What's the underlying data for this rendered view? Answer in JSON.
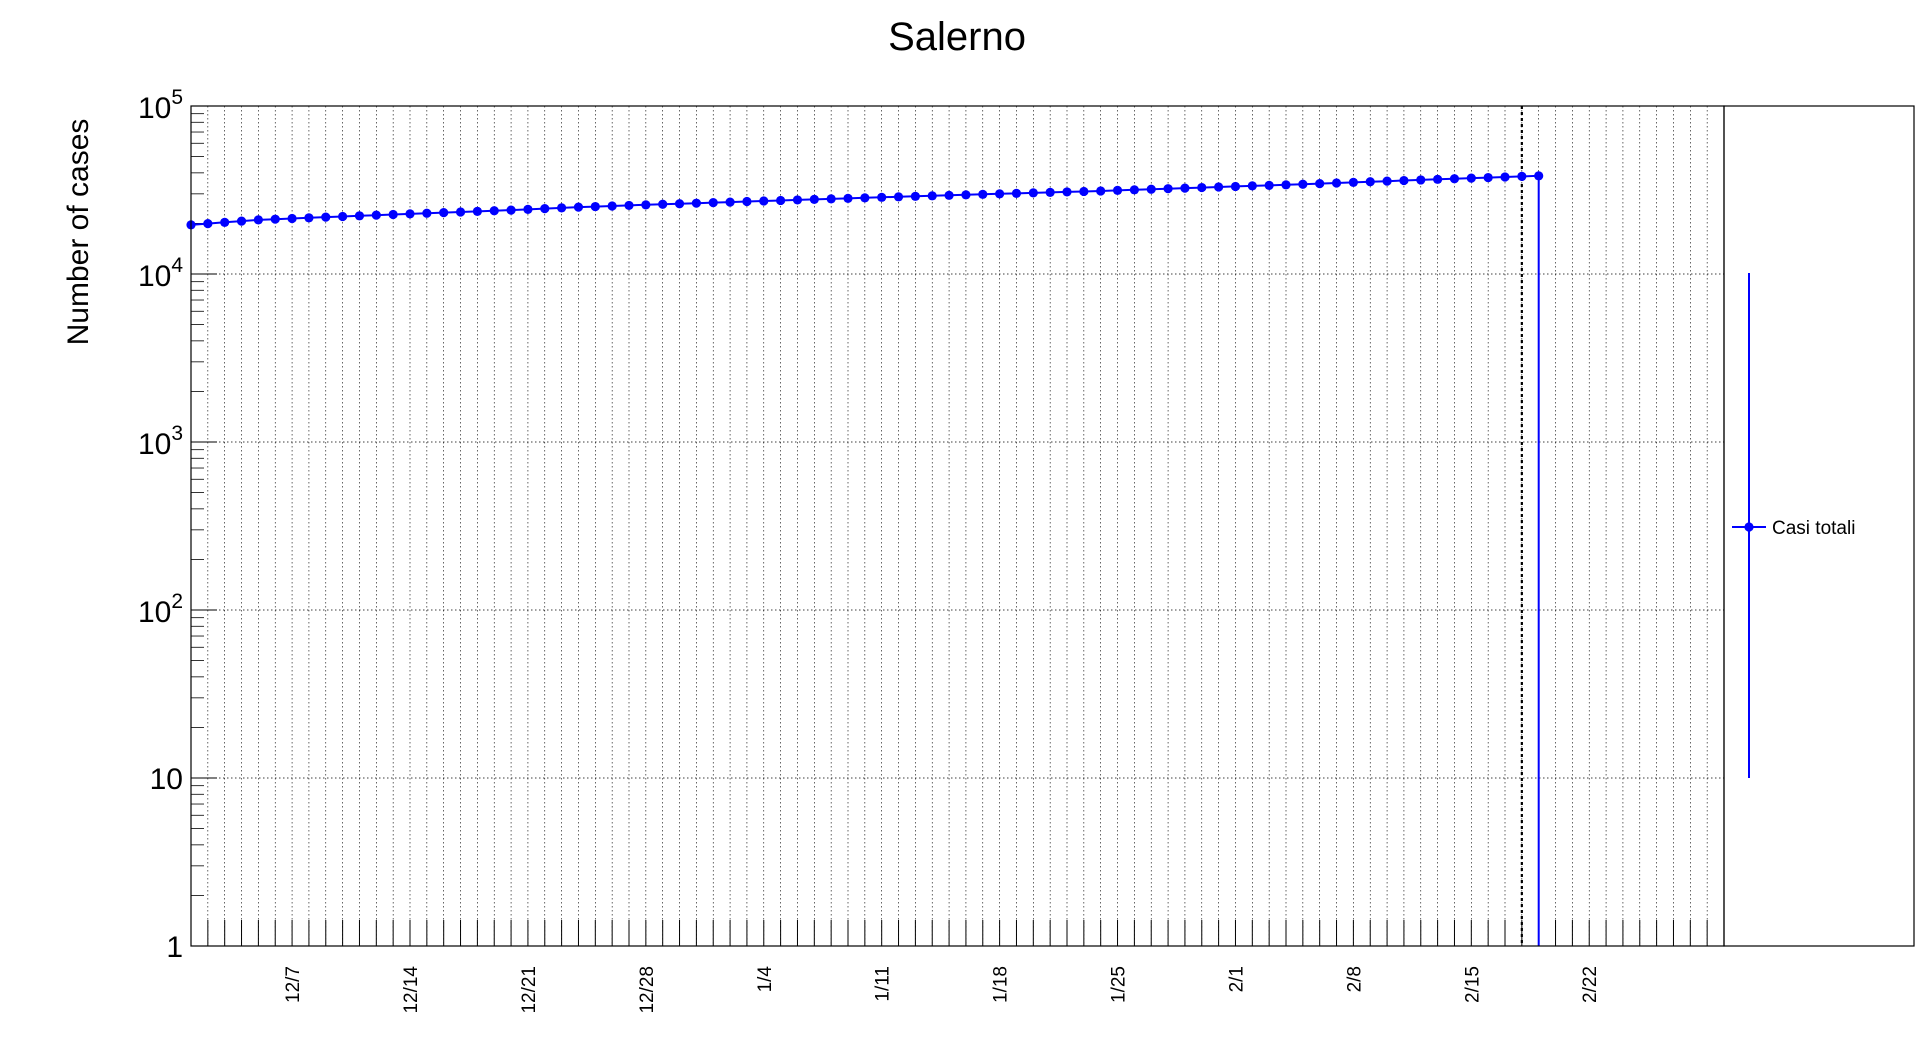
{
  "chart_data": {
    "type": "line",
    "title": "Salerno",
    "ylabel": "Number of cases",
    "xlabel": "",
    "y_scale": "log",
    "ylim": [
      1,
      100000
    ],
    "y_tick_labels": [
      {
        "value": 1,
        "label": "1"
      },
      {
        "value": 10,
        "label": "10"
      },
      {
        "value": 100,
        "base": "10",
        "exp": "2"
      },
      {
        "value": 1000,
        "base": "10",
        "exp": "3"
      },
      {
        "value": 10000,
        "base": "10",
        "exp": "4"
      },
      {
        "value": 100000,
        "base": "10",
        "exp": "5"
      }
    ],
    "x_tick_labels": [
      "12/7",
      "12/14",
      "12/21",
      "12/28",
      "1/4",
      "1/11",
      "1/18",
      "1/25",
      "2/1",
      "2/8",
      "2/15",
      "2/22"
    ],
    "x_range_dates": [
      "2020-12-01",
      "2021-03-02"
    ],
    "grid": true,
    "vertical_marker_date": "2021-02-18",
    "legend": {
      "position": "right",
      "entries": [
        {
          "label": "Casi totali",
          "color": "#0000ff"
        }
      ]
    },
    "series": [
      {
        "name": "Casi totali",
        "color": "#0000ff",
        "start_date": "2020-12-01",
        "values": [
          19600,
          19950,
          20300,
          20650,
          21000,
          21200,
          21400,
          21600,
          21800,
          22000,
          22200,
          22400,
          22600,
          22800,
          23000,
          23200,
          23400,
          23600,
          23800,
          24000,
          24250,
          24500,
          24750,
          25000,
          25200,
          25400,
          25600,
          25800,
          26000,
          26200,
          26400,
          26600,
          26800,
          27000,
          27200,
          27400,
          27600,
          27800,
          28000,
          28200,
          28400,
          28600,
          28800,
          29000,
          29200,
          29400,
          29600,
          29800,
          30000,
          30200,
          30400,
          30600,
          30800,
          31000,
          31200,
          31450,
          31700,
          31950,
          32200,
          32450,
          32700,
          32950,
          33200,
          33450,
          33700,
          33950,
          34200,
          34500,
          34800,
          35100,
          35400,
          35700,
          36000,
          36300,
          36600,
          36900,
          37200,
          37500,
          37800,
          38100,
          38400
        ],
        "drop": [
          {
            "date": "2021-02-19",
            "value": 10000
          },
          {
            "date": "2021-02-19",
            "value": 3000
          },
          {
            "date": "2021-02-19",
            "value": 1000
          },
          {
            "date": "2021-02-19",
            "value": 300
          },
          {
            "date": "2021-02-19",
            "value": 100
          },
          {
            "date": "2021-02-19",
            "value": 30
          },
          {
            "date": "2021-02-19",
            "value": 10
          },
          {
            "date": "2021-02-19",
            "value": 3
          },
          {
            "date": "2021-02-19",
            "value": 1
          }
        ]
      }
    ]
  }
}
